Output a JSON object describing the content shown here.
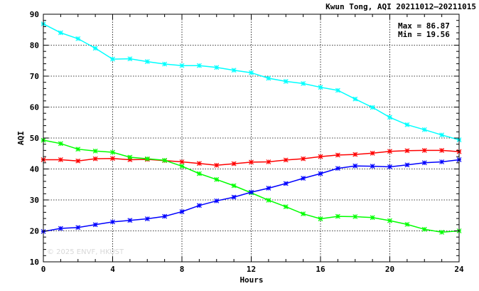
{
  "chart_data": {
    "type": "line",
    "title": "Kwun Tong, AQI 20211012–20211015",
    "xlabel": "Hours",
    "ylabel": "AQI",
    "xlim": [
      0,
      24
    ],
    "ylim": [
      10,
      90
    ],
    "x_ticks": [
      0,
      4,
      8,
      12,
      16,
      20,
      24
    ],
    "y_ticks": [
      10,
      20,
      30,
      40,
      50,
      60,
      70,
      80,
      90
    ],
    "grid": true,
    "x": [
      0,
      1,
      2,
      3,
      4,
      5,
      6,
      7,
      8,
      9,
      10,
      11,
      12,
      13,
      14,
      15,
      16,
      17,
      18,
      19,
      20,
      21,
      22,
      23,
      24
    ],
    "series": [
      {
        "color": "#00ffff",
        "values": [
          86.87,
          84.0,
          82.1,
          79.0,
          75.5,
          75.6,
          74.7,
          73.9,
          73.4,
          73.4,
          72.8,
          71.9,
          71.1,
          69.3,
          68.3,
          67.6,
          66.4,
          65.4,
          62.6,
          59.9,
          56.7,
          54.3,
          52.7,
          51.0,
          49.4
        ]
      },
      {
        "color": "#ff0000",
        "values": [
          43.0,
          43.0,
          42.6,
          43.3,
          43.4,
          43.0,
          43.1,
          42.7,
          42.3,
          41.8,
          41.2,
          41.7,
          42.2,
          42.3,
          42.9,
          43.3,
          44.0,
          44.5,
          44.7,
          45.1,
          45.7,
          45.9,
          46.0,
          46.0,
          45.6
        ]
      },
      {
        "color": "#00ff00",
        "values": [
          49.3,
          48.2,
          46.4,
          45.8,
          45.4,
          43.8,
          43.3,
          42.8,
          40.9,
          38.5,
          36.6,
          34.6,
          32.3,
          29.9,
          27.8,
          25.5,
          23.9,
          24.7,
          24.6,
          24.3,
          23.3,
          22.1,
          20.5,
          19.56,
          20.0
        ]
      },
      {
        "color": "#0000ff",
        "values": [
          19.8,
          20.8,
          21.1,
          22.0,
          22.9,
          23.4,
          23.9,
          24.7,
          26.2,
          28.2,
          29.7,
          30.9,
          32.5,
          33.8,
          35.3,
          37.0,
          38.5,
          40.2,
          41.0,
          40.9,
          40.7,
          41.3,
          42.0,
          42.3,
          43.0
        ]
      }
    ],
    "annotations": {
      "max_label": "Max = 86.87",
      "min_label": "Min = 19.56"
    },
    "watermark": "© 2025  ENVF, HKUST"
  }
}
